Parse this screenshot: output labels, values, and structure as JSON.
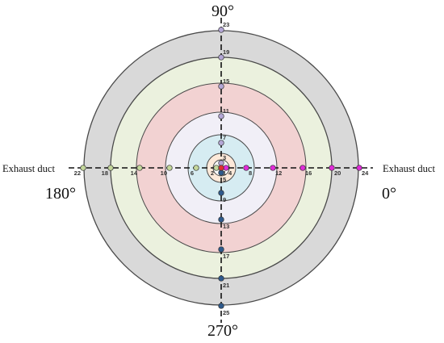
{
  "angles": {
    "top": "90°",
    "left": "180°",
    "right": "0°",
    "bottom": "270°"
  },
  "duct_labels": {
    "left": "Exhaust duct",
    "right": "Exhaust duct"
  },
  "rings": [
    {
      "fill": "#d9d9d9"
    },
    {
      "fill": "#ebf1de"
    },
    {
      "fill": "#f2d2d2"
    },
    {
      "fill": "#f1eff7"
    },
    {
      "fill": "#d6ecf2"
    },
    {
      "fill": "#fde9d9"
    },
    {
      "fill": "#ffffff"
    }
  ],
  "colors": {
    "ring_stroke": "#4a4a4a",
    "axis": "#111111",
    "up": "#b4a7d6",
    "down": "#2e5a8c",
    "left": "#c4d79b",
    "right": "#e02bd8",
    "center": "#e03030"
  },
  "points": {
    "center": "1",
    "right": [
      "4",
      "8",
      "12",
      "16",
      "20",
      "24"
    ],
    "left": [
      "2",
      "6",
      "10",
      "14",
      "18",
      "22"
    ],
    "up": [
      "3",
      "7",
      "11",
      "15",
      "19",
      "23"
    ],
    "down": [
      "5",
      "9",
      "13",
      "17",
      "21",
      "25"
    ]
  }
}
